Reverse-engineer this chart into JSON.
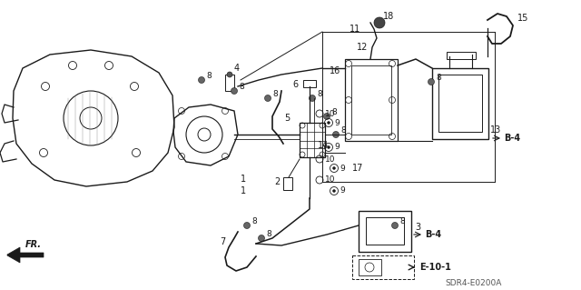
{
  "background_color": "#ffffff",
  "figure_width": 6.4,
  "figure_height": 3.19,
  "dpi": 100,
  "diagram_source": "SDR4-E0200A",
  "line_color": "#1a1a1a",
  "font_size": 7
}
